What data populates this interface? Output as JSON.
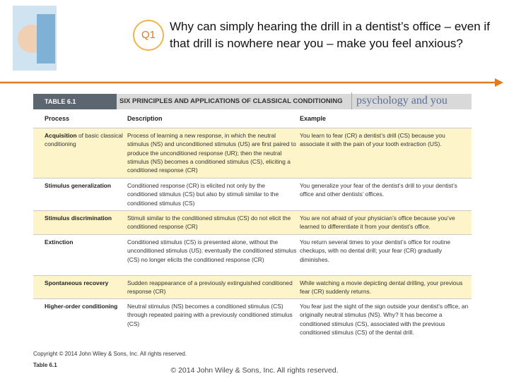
{
  "header": {
    "badge": "Q1",
    "question": "Why can simply hearing the drill in a dentist’s office – even if that drill is nowhere near you – make you feel anxious?"
  },
  "table": {
    "label": "TABLE 6.1",
    "title": "SIX PRINCIPLES AND APPLICATIONS OF CLASSICAL CONDITIONING",
    "brand": "psychology and you",
    "columns": [
      "Process",
      "Description",
      "Example"
    ],
    "rows": [
      {
        "process": "Acquisition",
        "process_rest": "of basic classical conditioning",
        "description": "Process of learning a new response, in which the neutral stimulus (NS) and unconditioned stimulus (US) are first paired to produce the unconditioned response (UR); then the neutral stimulus (NS) becomes a conditioned stimulus (CS), eliciting a conditioned response (CR)",
        "example": "You learn to fear (CR) a dentist’s drill (CS) because you associate it with the pain of your tooth extraction (US)."
      },
      {
        "process": "Stimulus generalization",
        "process_rest": "",
        "description": "Conditioned response (CR) is elicited not only by the conditioned stimulus (CS) but also by stimuli similar to the conditioned stimulus (CS)",
        "example": "You generalize your fear of the dentist’s drill to your dentist’s office and other dentists’ offices."
      },
      {
        "process": "Stimulus discrimination",
        "process_rest": "",
        "description": "Stimuli similar to the conditioned stimulus (CS) do not elicit the conditioned response (CR)",
        "example": "You are not afraid of your physician’s office because you’ve learned to differentiate it from your dentist’s office."
      },
      {
        "process": "Extinction",
        "process_rest": "",
        "description": "Conditioned stimulus (CS) is presented alone, without the unconditioned stimulus (US); eventually the conditioned stimulus (CS) no longer elicits the conditioned response (CR)",
        "example": "You return several times to your dentist’s office for routine checkups, with no dental drill; your fear (CR) gradually diminishes."
      },
      {
        "process": "Spontaneous recovery",
        "process_rest": "",
        "description": "Sudden reappearance of a previously extinguished conditioned response (CR)",
        "example": "While watching a movie depicting dental drilling, your previous fear (CR) suddenly returns."
      },
      {
        "process": "Higher-order conditioning",
        "process_rest": "",
        "description": "Neutral stimulus (NS) becomes a conditioned stimulus (CS) through repeated pairing with a previously conditioned stimulus (CS)",
        "example": "You fear just the sight of the sign outside your dentist’s office, an originally neutral stimulus (NS). Why? It has become a conditioned stimulus (CS), associated with the previous conditioned stimulus (CS) of the dental drill."
      }
    ],
    "copyright": "Copyright © 2014 John Wiley & Sons, Inc. All rights reserved.",
    "caption": "Table 6.1"
  },
  "footer": "© 2014 John Wiley & Sons, Inc. All rights reserved."
}
